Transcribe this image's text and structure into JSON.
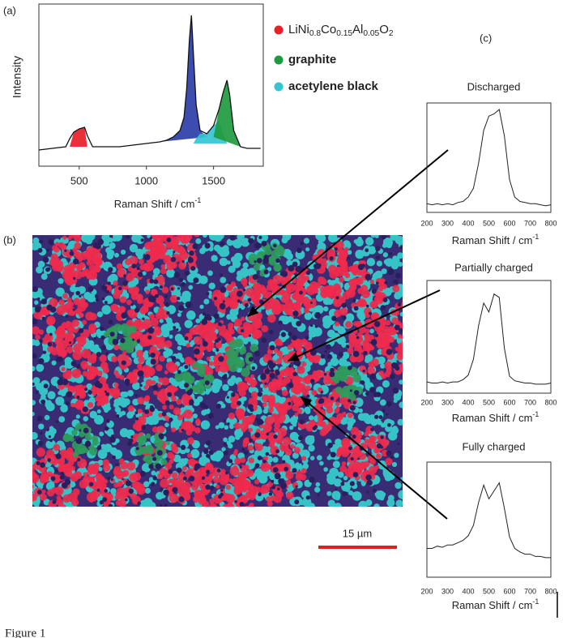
{
  "panel_labels": [
    "(a)",
    "(b)",
    "(c)"
  ],
  "scale_bar": "15 µm",
  "caption": "Figure 1",
  "chart_data": [
    {
      "type": "area",
      "xlabel": "Raman Shift  /  cm-1",
      "ylabel": "Intensity",
      "xlim": [
        200,
        1870
      ],
      "ylim": [
        0,
        100
      ],
      "xticks": [
        500,
        1000,
        1500
      ],
      "x": [
        200,
        300,
        400,
        430,
        460,
        500,
        540,
        560,
        600,
        700,
        800,
        900,
        1000,
        1100,
        1150,
        1200,
        1250,
        1280,
        1300,
        1320,
        1335,
        1350,
        1370,
        1400,
        1450,
        1500,
        1540,
        1570,
        1600,
        1620,
        1650,
        1700,
        1750,
        1800,
        1850
      ],
      "values": [
        10,
        11,
        12,
        17,
        21,
        23,
        24,
        19,
        12,
        12,
        12,
        13,
        14,
        15,
        16,
        18,
        22,
        30,
        48,
        78,
        93,
        70,
        38,
        22,
        20,
        25,
        35,
        45,
        53,
        44,
        22,
        12,
        11,
        11,
        11
      ],
      "color": "#111111",
      "series": [
        {
          "name": "LiNi0.8Co0.15Al0.05O2",
          "color": "#e8202a",
          "values": [
            null,
            null,
            null,
            12,
            21,
            23,
            24,
            12,
            null,
            null,
            null,
            null,
            null,
            null,
            null,
            null,
            null,
            null,
            null,
            null,
            null,
            null,
            null,
            null,
            null,
            null,
            null,
            null,
            null,
            null,
            null,
            null,
            null,
            null,
            null
          ]
        },
        {
          "name": "graphite",
          "color": "#1f9a3e",
          "values": [
            null,
            null,
            null,
            null,
            null,
            null,
            null,
            null,
            null,
            null,
            null,
            null,
            null,
            null,
            null,
            null,
            null,
            null,
            null,
            null,
            null,
            null,
            null,
            null,
            null,
            18,
            35,
            45,
            53,
            44,
            22,
            12,
            null,
            null,
            null
          ]
        },
        {
          "name": "acetylene black",
          "color": "#35c4d2",
          "values": [
            null,
            null,
            null,
            null,
            null,
            null,
            null,
            null,
            null,
            null,
            null,
            null,
            null,
            null,
            null,
            null,
            null,
            null,
            null,
            null,
            null,
            14,
            17,
            20,
            20,
            25,
            28,
            20,
            14,
            null,
            null,
            null,
            null,
            null,
            null
          ]
        },
        {
          "color": "#2b3ea8",
          "values": [
            null,
            null,
            null,
            null,
            null,
            null,
            null,
            null,
            null,
            null,
            null,
            null,
            null,
            15,
            16,
            18,
            22,
            30,
            48,
            78,
            93,
            70,
            38,
            22,
            18,
            null,
            null,
            null,
            null,
            null,
            null,
            null,
            null,
            null,
            null
          ]
        }
      ]
    },
    {
      "type": "line",
      "title": "Discharged",
      "xlabel": "Raman Shift  /  cm-1",
      "xlim": [
        200,
        800
      ],
      "ylim": [
        0,
        100
      ],
      "xticks": [
        200,
        300,
        400,
        500,
        600,
        700,
        800
      ],
      "color": "#222222",
      "x": [
        200,
        225,
        250,
        275,
        300,
        325,
        350,
        375,
        400,
        425,
        450,
        475,
        500,
        525,
        550,
        575,
        600,
        625,
        650,
        675,
        700,
        725,
        750,
        775,
        800
      ],
      "values": [
        8,
        7,
        8,
        7,
        8,
        7,
        9,
        10,
        14,
        22,
        45,
        75,
        88,
        90,
        94,
        70,
        30,
        14,
        10,
        9,
        8,
        8,
        7,
        6,
        7
      ]
    },
    {
      "type": "line",
      "title": "Partially charged",
      "xlabel": "Raman Shift  /  cm-1",
      "xlim": [
        200,
        800
      ],
      "ylim": [
        0,
        100
      ],
      "xticks": [
        200,
        300,
        400,
        500,
        600,
        700,
        800
      ],
      "color": "#222222",
      "x": [
        200,
        225,
        250,
        275,
        300,
        325,
        350,
        375,
        400,
        425,
        450,
        475,
        500,
        525,
        550,
        575,
        600,
        625,
        650,
        675,
        700,
        725,
        750,
        775,
        800
      ],
      "values": [
        10,
        9,
        9,
        10,
        9,
        10,
        10,
        12,
        16,
        30,
        60,
        80,
        72,
        88,
        85,
        40,
        15,
        11,
        10,
        9,
        9,
        8,
        8,
        8,
        9
      ]
    },
    {
      "type": "line",
      "title": "Fully charged",
      "xlabel": "Raman Shift  /  cm-1",
      "xlim": [
        200,
        800
      ],
      "ylim": [
        0,
        100
      ],
      "xticks": [
        200,
        300,
        400,
        500,
        600,
        700,
        800
      ],
      "color": "#222222",
      "x": [
        200,
        225,
        250,
        275,
        300,
        325,
        350,
        375,
        400,
        425,
        450,
        475,
        500,
        525,
        550,
        575,
        600,
        625,
        650,
        675,
        700,
        725,
        750,
        775,
        800
      ],
      "values": [
        25,
        25,
        27,
        26,
        28,
        28,
        30,
        32,
        36,
        45,
        65,
        80,
        68,
        75,
        82,
        60,
        35,
        25,
        22,
        20,
        20,
        18,
        18,
        17,
        17
      ]
    }
  ]
}
